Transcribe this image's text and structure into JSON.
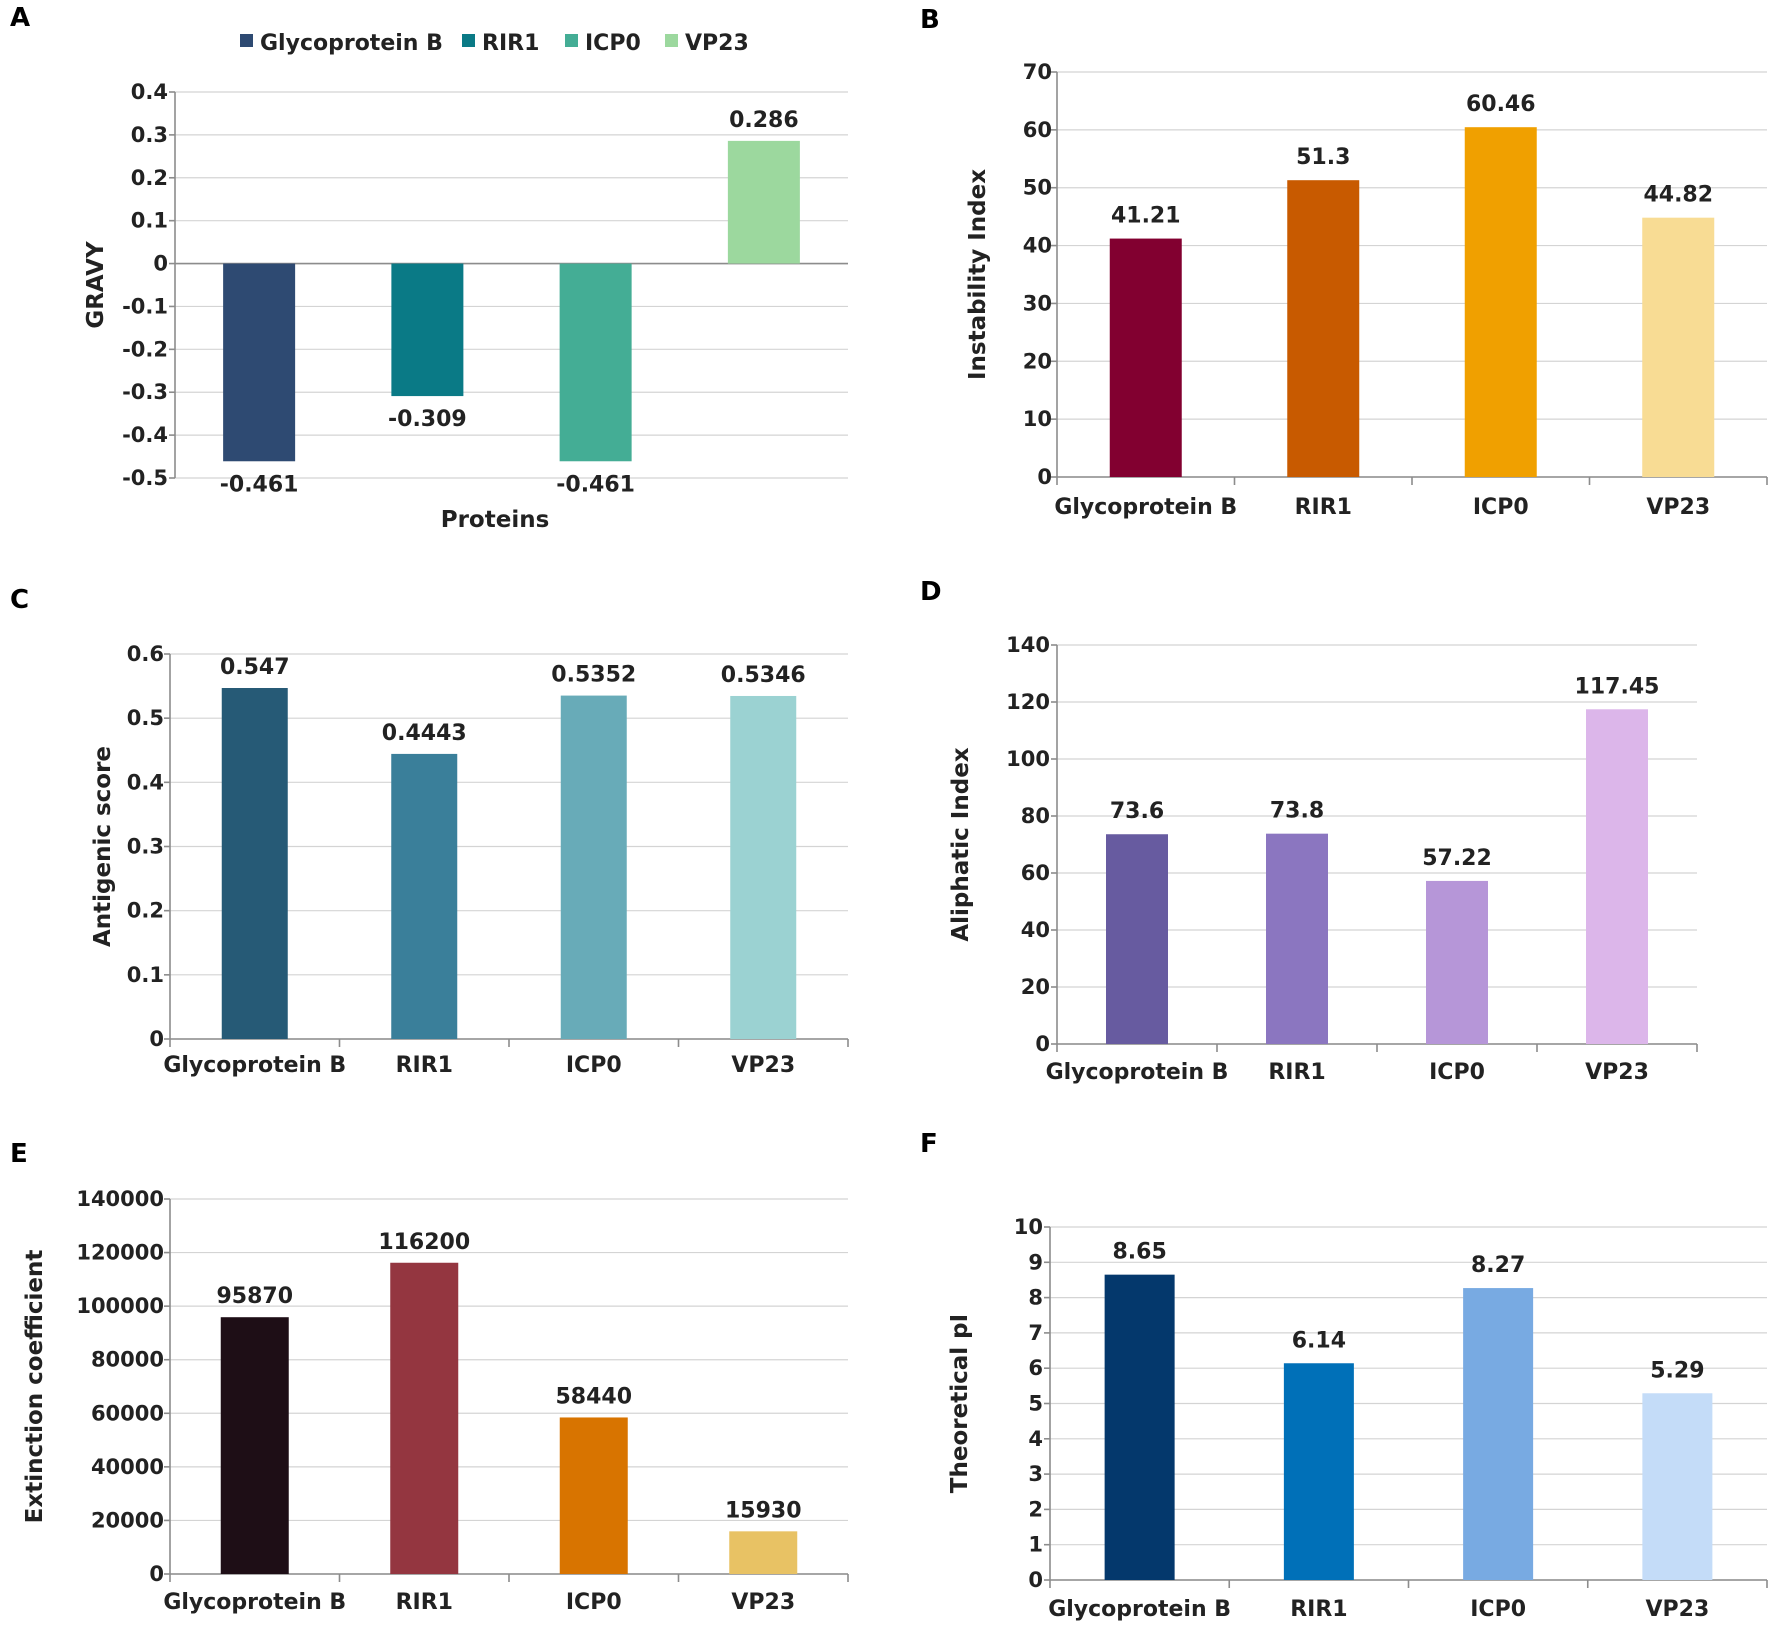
{
  "chart_data": [
    {
      "panel": "A",
      "type": "bar",
      "categories": [
        "Glycoprotein B",
        "RIR1",
        "ICP0",
        "VP23"
      ],
      "values": [
        -0.461,
        -0.309,
        -0.461,
        0.286
      ],
      "value_labels": [
        "-0.461",
        "-0.309",
        "-0.461",
        "0.286"
      ],
      "colors": [
        "#2e4a72",
        "#0a7a86",
        "#44ad95",
        "#9cd89e"
      ],
      "ylabel": "GRAVY",
      "xlabel": "Proteins",
      "ylim": [
        -0.5,
        0.4
      ],
      "yticks": [
        0.4,
        0.3,
        0.2,
        0.1,
        0,
        -0.1,
        -0.2,
        -0.3,
        -0.4,
        -0.5
      ],
      "ytick_labels": [
        "0.4",
        "0.3",
        "0.2",
        "0.1",
        "0",
        "-0.1",
        "-0.2",
        "-0.3",
        "-0.4",
        "-0.5"
      ],
      "legend": [
        "Glycoprotein B",
        "RIR1",
        "ICP0",
        "VP23"
      ],
      "legend_position": "top",
      "grid": true
    },
    {
      "panel": "B",
      "type": "bar",
      "categories": [
        "Glycoprotein B",
        "RIR1",
        "ICP0",
        "VP23"
      ],
      "values": [
        41.21,
        51.3,
        60.46,
        44.82
      ],
      "value_labels": [
        "41.21",
        "51.3",
        "60.46",
        "44.82"
      ],
      "colors": [
        "#820030",
        "#c85a00",
        "#f0a000",
        "#f8dc94"
      ],
      "ylabel": "Instability Index",
      "ylim": [
        0,
        70
      ],
      "yticks": [
        0,
        10,
        20,
        30,
        40,
        50,
        60,
        70
      ],
      "ytick_labels": [
        "0",
        "10",
        "20",
        "30",
        "40",
        "50",
        "60",
        "70"
      ],
      "grid": true
    },
    {
      "panel": "C",
      "type": "bar",
      "categories": [
        "Glycoprotein B",
        "RIR1",
        "ICP0",
        "VP23"
      ],
      "values": [
        0.547,
        0.4443,
        0.5352,
        0.5346
      ],
      "value_labels": [
        "0.547",
        "0.4443",
        "0.5352",
        "0.5346"
      ],
      "colors": [
        "#265a76",
        "#3a7f9a",
        "#68abb8",
        "#9bd2d2"
      ],
      "ylabel": "Antigenic score",
      "ylim": [
        0,
        0.6
      ],
      "yticks": [
        0,
        0.1,
        0.2,
        0.3,
        0.4,
        0.5,
        0.6
      ],
      "ytick_labels": [
        "0",
        "0.1",
        "0.2",
        "0.3",
        "0.4",
        "0.5",
        "0.6"
      ],
      "grid": true
    },
    {
      "panel": "D",
      "type": "bar",
      "categories": [
        "Glycoprotein B",
        "RIR1",
        "ICP0",
        "VP23"
      ],
      "values": [
        73.6,
        73.8,
        57.22,
        117.45
      ],
      "value_labels": [
        "73.6",
        "73.8",
        "57.22",
        "117.45"
      ],
      "colors": [
        "#675ba0",
        "#8b76c0",
        "#b696d8",
        "#dcb6ea"
      ],
      "ylabel": "Aliphatic Index",
      "ylim": [
        0,
        140
      ],
      "yticks": [
        0,
        20,
        40,
        60,
        80,
        100,
        120,
        140
      ],
      "ytick_labels": [
        "0",
        "20",
        "40",
        "60",
        "80",
        "100",
        "120",
        "140"
      ],
      "grid": true
    },
    {
      "panel": "E",
      "type": "bar",
      "categories": [
        "Glycoprotein B",
        "RIR1",
        "ICP0",
        "VP23"
      ],
      "values": [
        95870,
        116200,
        58440,
        15930
      ],
      "value_labels": [
        "95870",
        "116200",
        "58440",
        "15930"
      ],
      "colors": [
        "#1e0e16",
        "#943640",
        "#d87400",
        "#e8c264"
      ],
      "ylabel": "Extinction coefficient",
      "ylim": [
        0,
        140000
      ],
      "yticks": [
        0,
        20000,
        40000,
        60000,
        80000,
        100000,
        120000,
        140000
      ],
      "ytick_labels": [
        "0",
        "20000",
        "40000",
        "60000",
        "80000",
        "100000",
        "120000",
        "140000"
      ],
      "grid": true
    },
    {
      "panel": "F",
      "type": "bar",
      "categories": [
        "Glycoprotein B",
        "RIR1",
        "ICP0",
        "VP23"
      ],
      "values": [
        8.65,
        6.14,
        8.27,
        5.29
      ],
      "value_labels": [
        "8.65",
        "6.14",
        "8.27",
        "5.29"
      ],
      "colors": [
        "#04386c",
        "#0070b8",
        "#78aae2",
        "#c4dcf8"
      ],
      "ylabel": "Theoretical pI",
      "ylim": [
        0,
        10
      ],
      "yticks": [
        0,
        1,
        2,
        3,
        4,
        5,
        6,
        7,
        8,
        9,
        10
      ],
      "ytick_labels": [
        "0",
        "1",
        "2",
        "3",
        "4",
        "5",
        "6",
        "7",
        "8",
        "9",
        "10"
      ],
      "grid": true
    }
  ]
}
